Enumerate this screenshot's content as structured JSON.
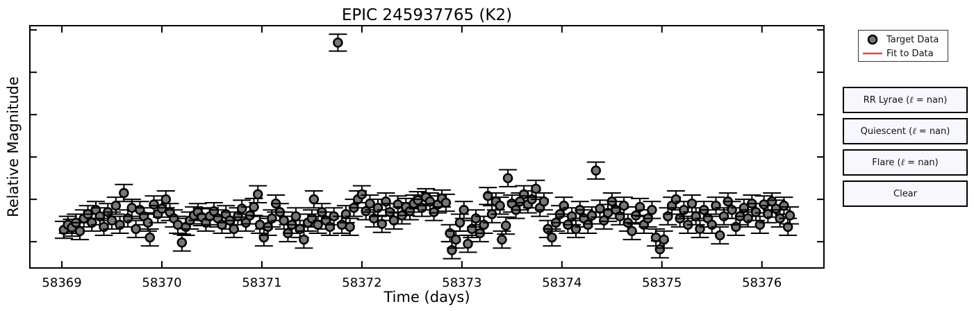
{
  "colors": {
    "marker_fill": "#777777",
    "marker_edge": "#000000",
    "fit_line": "#e8403f",
    "button_bg": "#f7f8fe"
  },
  "legend": {
    "target": "Target Data",
    "fit": "Fit to Data"
  },
  "buttons": {
    "rr_lyrae": {
      "name": "RR Lyrae",
      "value": "nan"
    },
    "quiescent": {
      "name": "Quiescent",
      "value": "nan"
    },
    "flare": {
      "name": "Flare",
      "value": "nan"
    },
    "clear": "Clear"
  },
  "chart_data": {
    "type": "scatter",
    "title": "EPIC 245937765 (K2)",
    "xlabel": "Time (days)",
    "ylabel": "Relative Magnitude",
    "xlim": [
      58368.68,
      58376.62
    ],
    "ylim": [
      -0.62,
      5.1
    ],
    "x_ticks": [
      58369,
      58370,
      58371,
      58372,
      58373,
      58374,
      58375,
      58376
    ],
    "y_ticks": [
      0,
      1,
      2,
      3,
      4,
      5
    ],
    "y_tick_labels_shown": false,
    "grid": false,
    "legend_position": "outside-right-top",
    "series": [
      {
        "name": "Target Data",
        "type": "errorbar",
        "error": 0.2,
        "points": [
          [
            58369.02,
            0.28
          ],
          [
            58369.06,
            0.4
          ],
          [
            58369.1,
            0.33
          ],
          [
            58369.14,
            0.45
          ],
          [
            58369.18,
            0.25
          ],
          [
            58369.22,
            0.55
          ],
          [
            58369.26,
            0.65
          ],
          [
            58369.3,
            0.45
          ],
          [
            58369.34,
            0.75
          ],
          [
            58369.38,
            0.6
          ],
          [
            58369.42,
            0.35
          ],
          [
            58369.46,
            0.7
          ],
          [
            58369.5,
            0.5
          ],
          [
            58369.54,
            0.85
          ],
          [
            58369.58,
            0.4
          ],
          [
            58369.62,
            1.15
          ],
          [
            58369.66,
            0.55
          ],
          [
            58369.7,
            0.8
          ],
          [
            58369.74,
            0.3
          ],
          [
            58369.78,
            0.75
          ],
          [
            58369.82,
            0.6
          ],
          [
            58369.86,
            0.45
          ],
          [
            58369.88,
            0.1
          ],
          [
            58369.92,
            0.88
          ],
          [
            58369.96,
            0.65
          ],
          [
            58370.0,
            0.78
          ],
          [
            58370.04,
            1.0
          ],
          [
            58370.08,
            0.7
          ],
          [
            58370.12,
            0.55
          ],
          [
            58370.16,
            0.4
          ],
          [
            58370.2,
            -0.02
          ],
          [
            58370.24,
            0.35
          ],
          [
            58370.28,
            0.5
          ],
          [
            58370.32,
            0.62
          ],
          [
            58370.36,
            0.7
          ],
          [
            58370.4,
            0.58
          ],
          [
            58370.44,
            0.45
          ],
          [
            58370.48,
            0.6
          ],
          [
            58370.52,
            0.72
          ],
          [
            58370.56,
            0.55
          ],
          [
            58370.6,
            0.4
          ],
          [
            58370.64,
            0.65
          ],
          [
            58370.68,
            0.5
          ],
          [
            58370.72,
            0.3
          ],
          [
            58370.76,
            0.6
          ],
          [
            58370.8,
            0.78
          ],
          [
            58370.84,
            0.45
          ],
          [
            58370.88,
            0.62
          ],
          [
            58370.92,
            0.82
          ],
          [
            58370.96,
            1.12
          ],
          [
            58370.98,
            0.4
          ],
          [
            58371.02,
            0.1
          ],
          [
            58371.06,
            0.35
          ],
          [
            58371.1,
            0.55
          ],
          [
            58371.14,
            0.9
          ],
          [
            58371.18,
            0.7
          ],
          [
            58371.22,
            0.5
          ],
          [
            58371.26,
            0.2
          ],
          [
            58371.3,
            0.4
          ],
          [
            58371.34,
            0.6
          ],
          [
            58371.38,
            0.3
          ],
          [
            58371.42,
            0.05
          ],
          [
            58371.46,
            0.45
          ],
          [
            58371.5,
            0.55
          ],
          [
            58371.52,
            1.0
          ],
          [
            58371.56,
            0.4
          ],
          [
            58371.6,
            0.7
          ],
          [
            58371.64,
            0.5
          ],
          [
            58371.68,
            0.35
          ],
          [
            58371.72,
            0.6
          ],
          [
            58371.76,
            4.7
          ],
          [
            58371.8,
            0.4
          ],
          [
            58371.84,
            0.65
          ],
          [
            58371.88,
            0.35
          ],
          [
            58371.92,
            0.8
          ],
          [
            58371.96,
            1.0
          ],
          [
            58372.0,
            1.12
          ],
          [
            58372.04,
            0.72
          ],
          [
            58372.08,
            0.9
          ],
          [
            58372.12,
            0.55
          ],
          [
            58372.16,
            0.8
          ],
          [
            58372.2,
            0.42
          ],
          [
            58372.24,
            0.95
          ],
          [
            58372.28,
            0.7
          ],
          [
            58372.32,
            0.5
          ],
          [
            58372.36,
            0.88
          ],
          [
            58372.4,
            0.62
          ],
          [
            58372.44,
            0.82
          ],
          [
            58372.48,
            0.72
          ],
          [
            58372.52,
            0.9
          ],
          [
            58372.56,
            0.98
          ],
          [
            58372.6,
            0.8
          ],
          [
            58372.64,
            1.05
          ],
          [
            58372.68,
            0.95
          ],
          [
            58372.72,
            0.7
          ],
          [
            58372.76,
            0.88
          ],
          [
            58372.8,
            1.02
          ],
          [
            58372.84,
            0.92
          ],
          [
            58372.88,
            0.2
          ],
          [
            58372.9,
            -0.2
          ],
          [
            58372.94,
            0.05
          ],
          [
            58372.98,
            0.45
          ],
          [
            58373.02,
            0.75
          ],
          [
            58373.06,
            -0.05
          ],
          [
            58373.1,
            0.3
          ],
          [
            58373.14,
            0.55
          ],
          [
            58373.18,
            0.2
          ],
          [
            58373.22,
            0.4
          ],
          [
            58373.26,
            1.08
          ],
          [
            58373.3,
            0.65
          ],
          [
            58373.34,
            0.95
          ],
          [
            58373.38,
            0.85
          ],
          [
            58373.4,
            0.05
          ],
          [
            58373.44,
            0.38
          ],
          [
            58373.46,
            1.5
          ],
          [
            58373.5,
            0.9
          ],
          [
            58373.54,
            0.75
          ],
          [
            58373.58,
            0.95
          ],
          [
            58373.62,
            1.12
          ],
          [
            58373.66,
            0.88
          ],
          [
            58373.7,
            1.0
          ],
          [
            58373.74,
            1.25
          ],
          [
            58373.78,
            0.8
          ],
          [
            58373.82,
            0.95
          ],
          [
            58373.86,
            0.3
          ],
          [
            58373.9,
            0.1
          ],
          [
            58373.94,
            0.45
          ],
          [
            58373.98,
            0.65
          ],
          [
            58374.02,
            0.85
          ],
          [
            58374.06,
            0.4
          ],
          [
            58374.1,
            0.6
          ],
          [
            58374.14,
            0.3
          ],
          [
            58374.18,
            0.75
          ],
          [
            58374.22,
            0.55
          ],
          [
            58374.26,
            0.4
          ],
          [
            58374.3,
            0.62
          ],
          [
            58374.34,
            1.68
          ],
          [
            58374.38,
            0.78
          ],
          [
            58374.42,
            0.5
          ],
          [
            58374.46,
            0.68
          ],
          [
            58374.5,
            0.95
          ],
          [
            58374.54,
            0.75
          ],
          [
            58374.58,
            0.6
          ],
          [
            58374.62,
            0.85
          ],
          [
            58374.66,
            0.45
          ],
          [
            58374.7,
            0.25
          ],
          [
            58374.74,
            0.62
          ],
          [
            58374.78,
            0.82
          ],
          [
            58374.82,
            0.4
          ],
          [
            58374.86,
            0.55
          ],
          [
            58374.9,
            0.75
          ],
          [
            58374.94,
            0.1
          ],
          [
            58374.98,
            -0.18
          ],
          [
            58375.02,
            0.05
          ],
          [
            58375.06,
            0.6
          ],
          [
            58375.1,
            0.85
          ],
          [
            58375.14,
            1.0
          ],
          [
            58375.18,
            0.55
          ],
          [
            58375.22,
            0.75
          ],
          [
            58375.26,
            0.4
          ],
          [
            58375.3,
            0.9
          ],
          [
            58375.34,
            0.6
          ],
          [
            58375.38,
            0.3
          ],
          [
            58375.42,
            0.75
          ],
          [
            58375.46,
            0.55
          ],
          [
            58375.5,
            0.4
          ],
          [
            58375.54,
            0.85
          ],
          [
            58375.58,
            0.15
          ],
          [
            58375.62,
            0.6
          ],
          [
            58375.66,
            0.95
          ],
          [
            58375.7,
            0.75
          ],
          [
            58375.74,
            0.35
          ],
          [
            58375.78,
            0.6
          ],
          [
            58375.82,
            0.8
          ],
          [
            58375.86,
            0.55
          ],
          [
            58375.9,
            0.9
          ],
          [
            58375.94,
            0.7
          ],
          [
            58375.98,
            0.4
          ],
          [
            58376.02,
            0.88
          ],
          [
            58376.06,
            0.65
          ],
          [
            58376.1,
            0.95
          ],
          [
            58376.14,
            0.78
          ],
          [
            58376.18,
            0.55
          ],
          [
            58376.22,
            0.85
          ],
          [
            58376.26,
            0.35
          ],
          [
            58376.28,
            0.62
          ]
        ]
      }
    ]
  }
}
